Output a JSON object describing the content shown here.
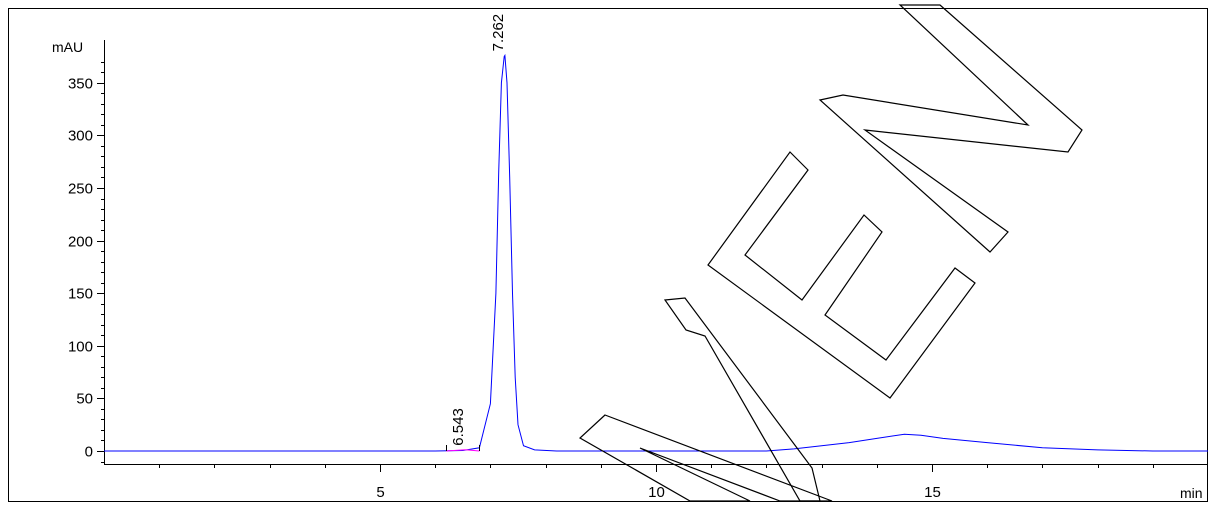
{
  "chart_data": {
    "type": "line",
    "title": "",
    "ylabel": "mAU",
    "xlabel": "min",
    "xlim": [
      0,
      20
    ],
    "ylim": [
      -15,
      390
    ],
    "x_ticks": [
      5,
      10,
      15
    ],
    "x_tick_labels": [
      "5",
      "10",
      "15"
    ],
    "y_ticks": [
      0,
      50,
      100,
      150,
      200,
      250,
      300,
      350
    ],
    "y_tick_labels": [
      "0",
      "50",
      "100",
      "150",
      "200",
      "250",
      "300",
      "350"
    ],
    "grid": false,
    "legend": "none",
    "series": [
      {
        "color": "#0000ff",
        "x": [
          0,
          2,
          4,
          5,
          6,
          6.5,
          6.8,
          7.0,
          7.1,
          7.15,
          7.2,
          7.25,
          7.262,
          7.3,
          7.35,
          7.4,
          7.45,
          7.5,
          7.6,
          7.8,
          8.2,
          9,
          10,
          11,
          12,
          12.5,
          13,
          13.5,
          14,
          14.5,
          14.8,
          15.2,
          16,
          17,
          18,
          19,
          20
        ],
        "y": [
          0,
          0,
          0,
          0,
          0,
          0.5,
          3,
          45,
          150,
          265,
          350,
          375,
          376,
          350,
          260,
          150,
          70,
          25,
          5,
          1,
          0,
          0,
          0,
          0,
          0,
          2,
          5,
          8,
          12,
          16,
          15,
          12,
          8,
          3,
          1,
          0,
          0
        ]
      },
      {
        "color": "#ff00ff",
        "x": [
          6.2,
          6.543,
          6.8
        ],
        "y": [
          0,
          1.2,
          0
        ]
      }
    ],
    "peaks": [
      {
        "x": 6.543,
        "label": "6.543"
      },
      {
        "x": 7.262,
        "label": "7.262"
      }
    ],
    "watermark": "NEW"
  }
}
